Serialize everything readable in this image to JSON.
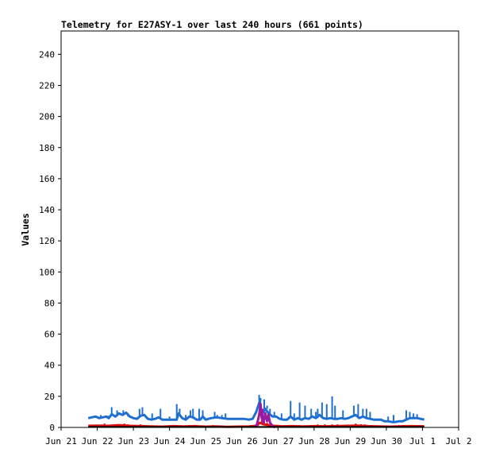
{
  "chart_data": {
    "type": "line",
    "title": "Telemetry for E27ASY-1 over last 240 hours (661 points)",
    "xlabel": "",
    "ylabel": "Values",
    "x_ticks": [
      "Jun 21",
      "Jun 22",
      "Jun 23",
      "Jun 24",
      "Jun 25",
      "Jun 26",
      "Jun 27",
      "Jun 28",
      "Jun 29",
      "Jun 30",
      "Jul 1",
      "Jul 2"
    ],
    "y_ticks": [
      0,
      20,
      40,
      60,
      80,
      100,
      120,
      140,
      160,
      180,
      200,
      220,
      240
    ],
    "xlim_days": [
      0,
      11
    ],
    "ylim": [
      0,
      255
    ],
    "grid": false,
    "colors": {
      "blue": "#1f6fd1",
      "red": "#e01010",
      "purple": "#9a1aa0",
      "black": "#000000"
    },
    "series": [
      {
        "color": "blue",
        "points": [
          [
            0.75,
            6.0
          ],
          [
            0.85,
            6.5
          ],
          [
            0.95,
            7.0
          ],
          [
            1.05,
            6.0
          ],
          [
            1.15,
            6.5
          ],
          [
            1.25,
            7.0
          ],
          [
            1.32,
            6.0
          ],
          [
            1.4,
            8.5
          ],
          [
            1.5,
            7.0
          ],
          [
            1.6,
            9.0
          ],
          [
            1.7,
            8.0
          ],
          [
            1.8,
            9.5
          ],
          [
            1.9,
            7.0
          ],
          [
            2.0,
            6.0
          ],
          [
            2.1,
            5.5
          ],
          [
            2.2,
            7.5
          ],
          [
            2.3,
            8.0
          ],
          [
            2.4,
            5.5
          ],
          [
            2.5,
            5.0
          ],
          [
            2.6,
            5.5
          ],
          [
            2.7,
            6.5
          ],
          [
            2.8,
            5.0
          ],
          [
            2.9,
            5.0
          ],
          [
            3.0,
            5.0
          ],
          [
            3.1,
            5.0
          ],
          [
            3.2,
            5.0
          ],
          [
            3.25,
            9.0
          ],
          [
            3.35,
            6.0
          ],
          [
            3.45,
            5.0
          ],
          [
            3.55,
            7.0
          ],
          [
            3.65,
            6.5
          ],
          [
            3.75,
            5.0
          ],
          [
            3.85,
            5.0
          ],
          [
            3.92,
            7.0
          ],
          [
            4.0,
            5.0
          ],
          [
            4.15,
            6.0
          ],
          [
            4.3,
            6.5
          ],
          [
            4.45,
            6.0
          ],
          [
            4.6,
            5.5
          ],
          [
            4.75,
            5.5
          ],
          [
            4.9,
            5.5
          ],
          [
            5.05,
            5.5
          ],
          [
            5.2,
            5.0
          ],
          [
            5.3,
            5.5
          ],
          [
            5.4,
            10.0
          ],
          [
            5.5,
            17.0
          ],
          [
            5.55,
            8.0
          ],
          [
            5.65,
            12.0
          ],
          [
            5.75,
            9.0
          ],
          [
            5.85,
            7.0
          ],
          [
            5.95,
            7.0
          ],
          [
            6.05,
            5.5
          ],
          [
            6.15,
            5.0
          ],
          [
            6.25,
            5.0
          ],
          [
            6.35,
            7.0
          ],
          [
            6.45,
            5.0
          ],
          [
            6.55,
            6.0
          ],
          [
            6.65,
            5.0
          ],
          [
            6.75,
            6.0
          ],
          [
            6.85,
            5.5
          ],
          [
            6.95,
            7.0
          ],
          [
            7.05,
            6.0
          ],
          [
            7.15,
            8.0
          ],
          [
            7.25,
            6.0
          ],
          [
            7.35,
            5.5
          ],
          [
            7.45,
            6.0
          ],
          [
            7.55,
            5.5
          ],
          [
            7.65,
            5.5
          ],
          [
            7.75,
            6.0
          ],
          [
            7.85,
            5.5
          ],
          [
            7.95,
            6.0
          ],
          [
            8.05,
            7.0
          ],
          [
            8.15,
            8.0
          ],
          [
            8.25,
            6.0
          ],
          [
            8.35,
            7.0
          ],
          [
            8.45,
            6.0
          ],
          [
            8.55,
            5.5
          ],
          [
            8.65,
            5.0
          ],
          [
            8.75,
            5.0
          ],
          [
            8.85,
            5.0
          ],
          [
            8.95,
            4.0
          ],
          [
            9.05,
            4.0
          ],
          [
            9.15,
            3.5
          ],
          [
            9.25,
            3.5
          ],
          [
            9.35,
            4.0
          ],
          [
            9.45,
            4.0
          ],
          [
            9.55,
            5.0
          ],
          [
            9.65,
            6.0
          ],
          [
            9.75,
            6.0
          ],
          [
            9.85,
            6.0
          ],
          [
            9.95,
            5.5
          ],
          [
            10.05,
            5.0
          ]
        ],
        "spikes": [
          [
            1.1,
            8.0
          ],
          [
            1.3,
            7.5
          ],
          [
            1.4,
            13.0
          ],
          [
            1.55,
            11.0
          ],
          [
            1.72,
            11.0
          ],
          [
            1.85,
            9.0
          ],
          [
            2.17,
            12.0
          ],
          [
            2.25,
            13.0
          ],
          [
            2.52,
            9.0
          ],
          [
            2.75,
            12.0
          ],
          [
            3.0,
            7.0
          ],
          [
            3.2,
            15.0
          ],
          [
            3.28,
            12.0
          ],
          [
            3.45,
            8.0
          ],
          [
            3.58,
            11.0
          ],
          [
            3.65,
            12.0
          ],
          [
            3.82,
            12.0
          ],
          [
            3.92,
            11.0
          ],
          [
            4.25,
            10.0
          ],
          [
            4.32,
            8.0
          ],
          [
            4.45,
            8.0
          ],
          [
            4.55,
            9.0
          ],
          [
            5.38,
            10.0
          ],
          [
            5.48,
            21.0
          ],
          [
            5.52,
            19.0
          ],
          [
            5.62,
            18.0
          ],
          [
            5.7,
            14.0
          ],
          [
            5.78,
            12.0
          ],
          [
            5.9,
            10.0
          ],
          [
            6.1,
            9.0
          ],
          [
            6.35,
            17.0
          ],
          [
            6.45,
            9.0
          ],
          [
            6.6,
            16.0
          ],
          [
            6.75,
            14.0
          ],
          [
            6.92,
            12.0
          ],
          [
            7.05,
            10.0
          ],
          [
            7.1,
            12.0
          ],
          [
            7.22,
            16.0
          ],
          [
            7.35,
            15.0
          ],
          [
            7.5,
            20.0
          ],
          [
            7.58,
            14.0
          ],
          [
            7.8,
            11.0
          ],
          [
            8.1,
            14.0
          ],
          [
            8.22,
            15.0
          ],
          [
            8.35,
            12.0
          ],
          [
            8.45,
            12.0
          ],
          [
            8.55,
            10.0
          ],
          [
            9.05,
            7.0
          ],
          [
            9.2,
            8.0
          ],
          [
            9.55,
            11.0
          ],
          [
            9.65,
            10.0
          ],
          [
            9.75,
            9.0
          ],
          [
            9.85,
            8.5
          ]
        ]
      },
      {
        "color": "red",
        "points": [
          [
            0.75,
            1.0
          ],
          [
            1.0,
            1.2
          ],
          [
            1.3,
            1.0
          ],
          [
            1.6,
            1.5
          ],
          [
            1.9,
            1.0
          ],
          [
            2.2,
            0.8
          ],
          [
            2.5,
            0.6
          ],
          [
            2.8,
            0.5
          ],
          [
            3.1,
            0.8
          ],
          [
            3.4,
            0.6
          ],
          [
            3.7,
            0.8
          ],
          [
            4.0,
            0.5
          ],
          [
            4.3,
            0.6
          ],
          [
            4.6,
            0.4
          ],
          [
            4.9,
            0.5
          ],
          [
            5.2,
            0.6
          ],
          [
            5.4,
            1.0
          ],
          [
            5.5,
            3.0
          ],
          [
            5.6,
            2.0
          ],
          [
            5.75,
            1.5
          ],
          [
            5.9,
            1.0
          ],
          [
            6.1,
            0.7
          ],
          [
            6.4,
            0.8
          ],
          [
            6.7,
            0.6
          ],
          [
            7.0,
            0.8
          ],
          [
            7.3,
            0.7
          ],
          [
            7.6,
            0.8
          ],
          [
            7.9,
            1.0
          ],
          [
            8.2,
            1.2
          ],
          [
            8.5,
            0.8
          ],
          [
            8.8,
            0.6
          ],
          [
            9.1,
            0.5
          ],
          [
            9.4,
            0.7
          ],
          [
            9.7,
            0.8
          ],
          [
            10.05,
            0.7
          ]
        ],
        "spikes": [
          [
            1.2,
            2.5
          ],
          [
            1.6,
            2.0
          ],
          [
            1.75,
            2.5
          ],
          [
            1.85,
            2.0
          ],
          [
            2.2,
            2.0
          ],
          [
            2.35,
            1.5
          ],
          [
            3.55,
            1.5
          ],
          [
            4.2,
            1.5
          ],
          [
            5.45,
            4.0
          ],
          [
            5.55,
            5.0
          ],
          [
            5.62,
            4.0
          ],
          [
            5.7,
            3.0
          ],
          [
            6.45,
            1.5
          ],
          [
            6.6,
            1.5
          ],
          [
            7.1,
            2.0
          ],
          [
            7.3,
            2.0
          ],
          [
            7.5,
            2.0
          ],
          [
            7.65,
            2.0
          ],
          [
            7.8,
            1.5
          ],
          [
            8.15,
            2.5
          ],
          [
            8.3,
            2.0
          ],
          [
            8.4,
            2.0
          ],
          [
            8.55,
            1.5
          ],
          [
            9.35,
            1.5
          ],
          [
            9.7,
            1.5
          ]
        ]
      },
      {
        "color": "purple",
        "points": [
          [
            5.35,
            0.0
          ],
          [
            5.42,
            2.0
          ],
          [
            5.48,
            8.0
          ],
          [
            5.52,
            15.0
          ],
          [
            5.55,
            6.0
          ],
          [
            5.6,
            3.0
          ],
          [
            5.65,
            9.0
          ],
          [
            5.7,
            4.0
          ],
          [
            5.74,
            8.0
          ],
          [
            5.78,
            3.0
          ],
          [
            5.85,
            1.0
          ],
          [
            5.92,
            0.0
          ]
        ],
        "spikes": [
          [
            5.5,
            16.0
          ],
          [
            5.58,
            12.0
          ],
          [
            5.66,
            10.0
          ],
          [
            5.73,
            9.0
          ]
        ]
      },
      {
        "color": "black",
        "points": [
          [
            0.75,
            0.3
          ],
          [
            10.05,
            0.3
          ]
        ],
        "spikes": []
      }
    ]
  }
}
